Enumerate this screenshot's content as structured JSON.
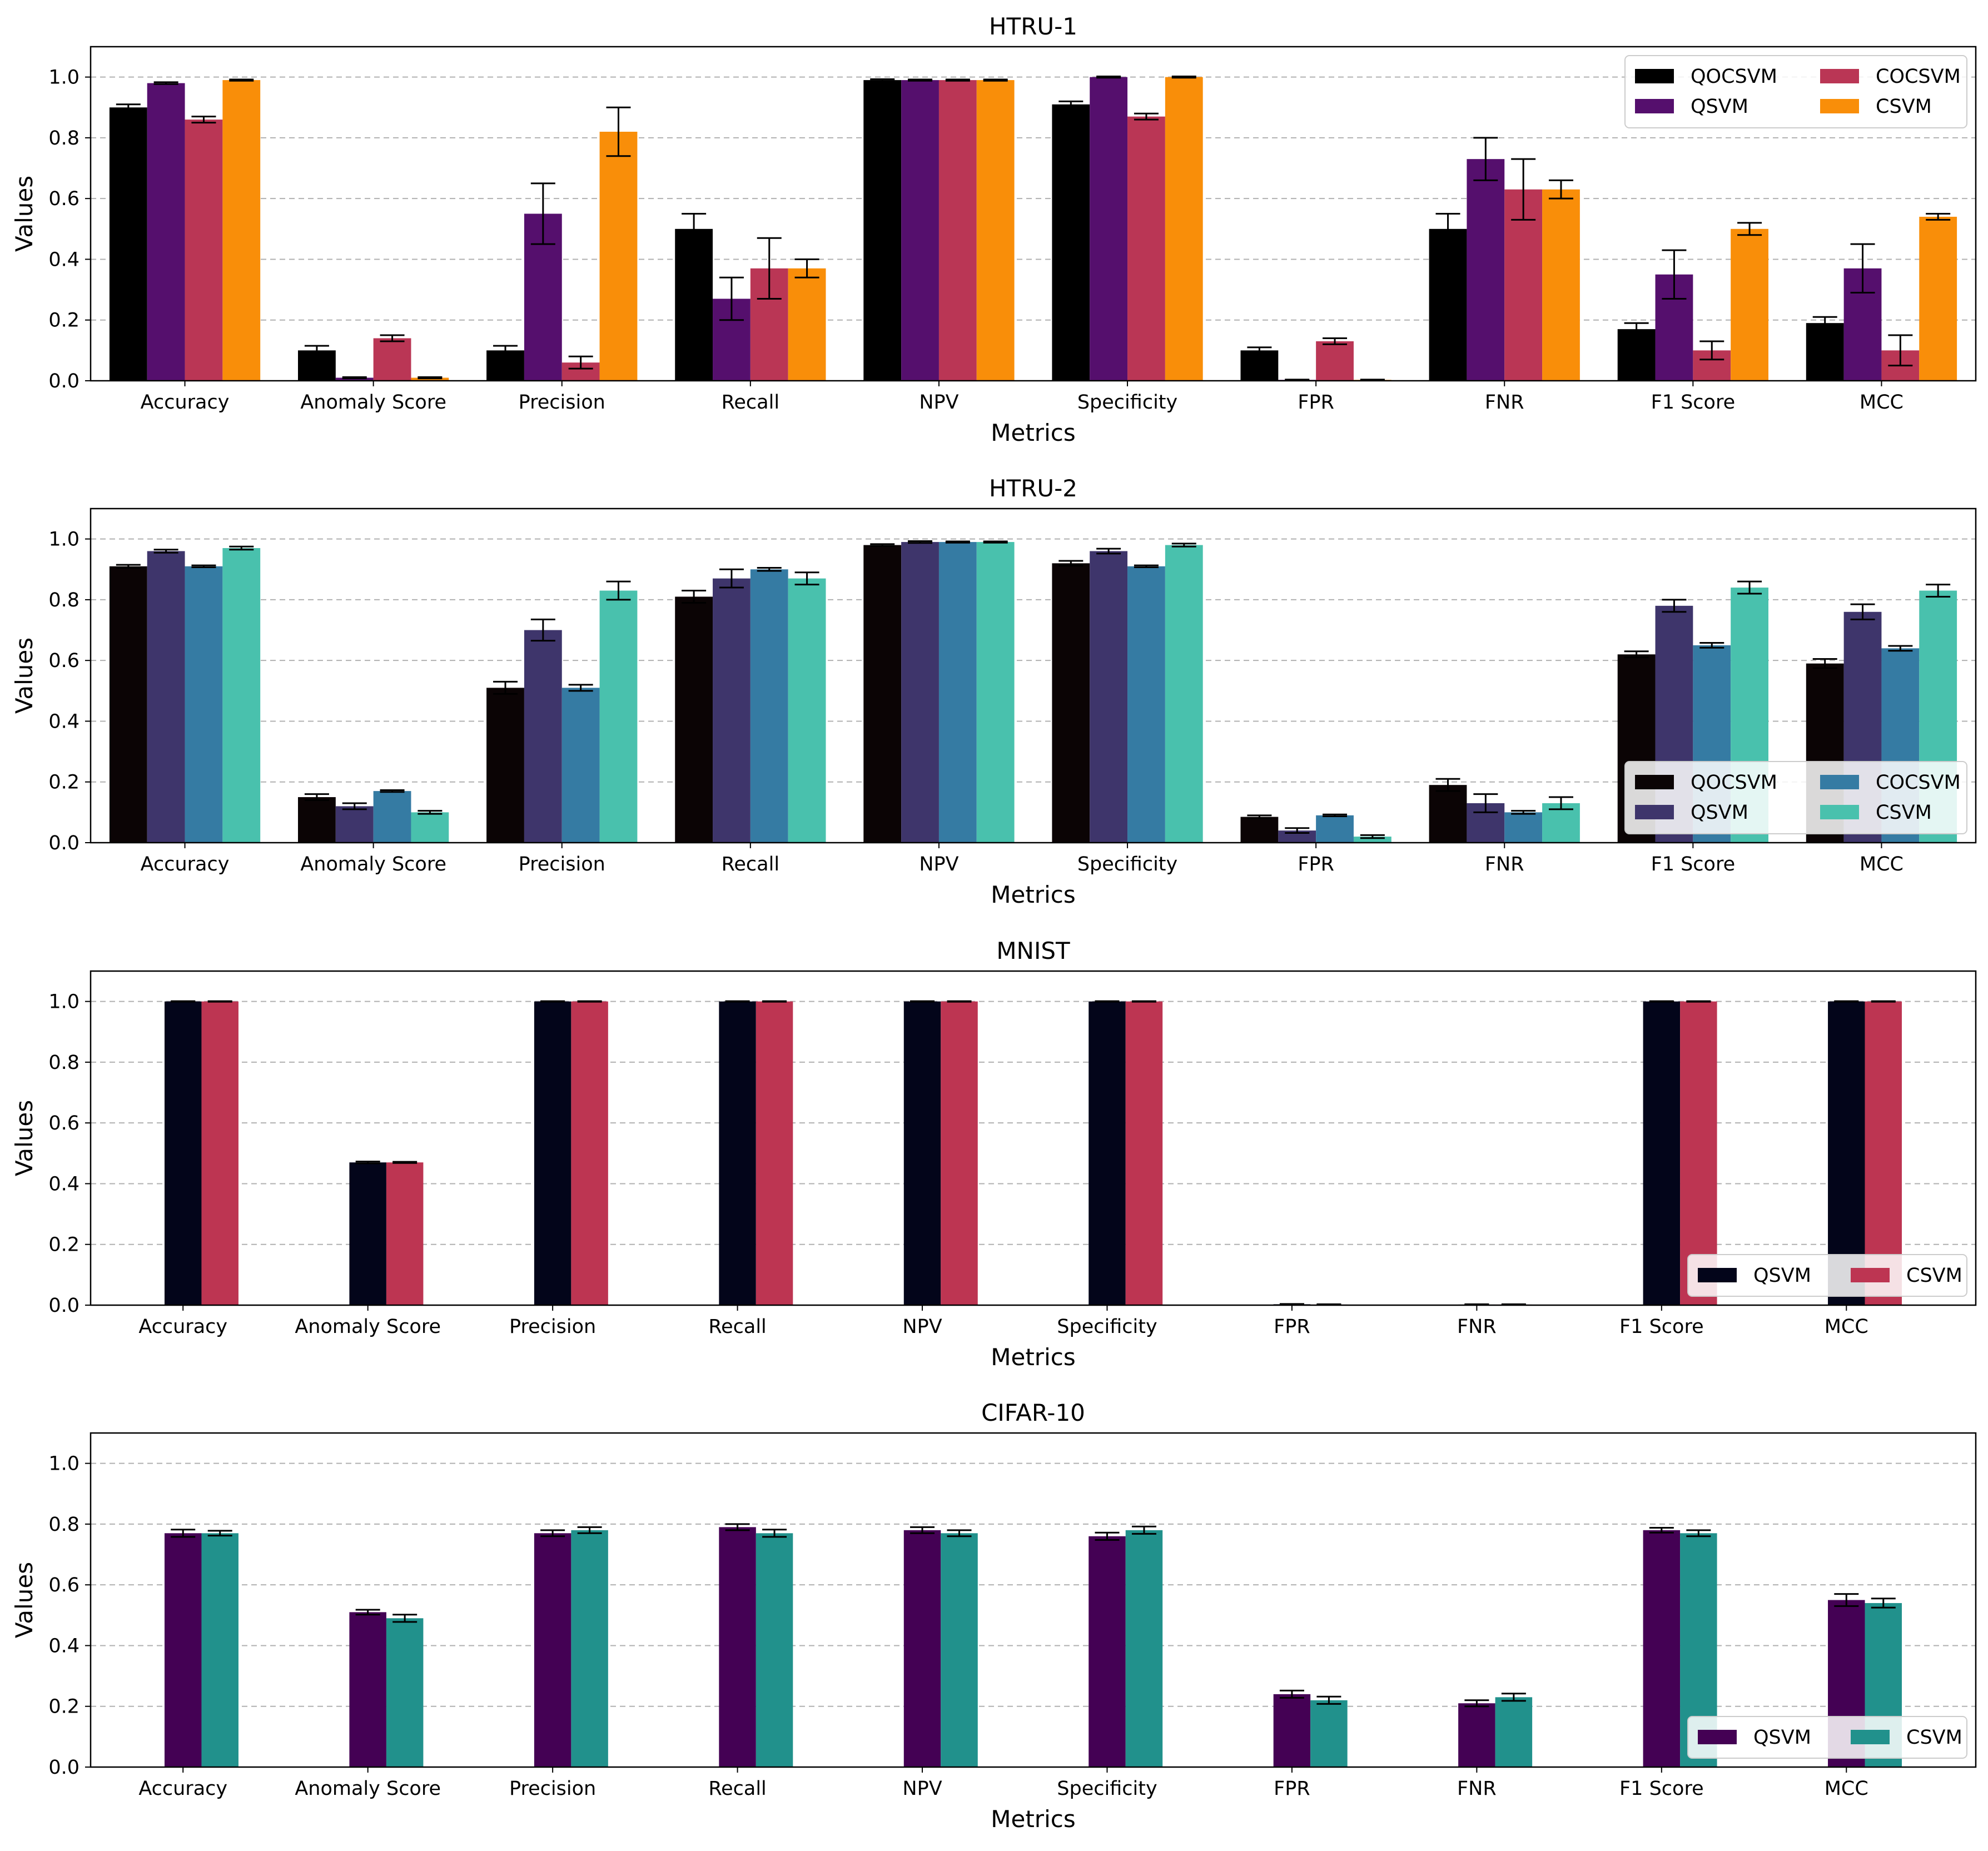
{
  "chart_data": [
    {
      "type": "bar",
      "title": "HTRU-1",
      "xlabel": "Metrics",
      "ylabel": "Values",
      "ylim": [
        0,
        1.1
      ],
      "yticks": [
        "0.0",
        "0.2",
        "0.4",
        "0.6",
        "0.8",
        "1.0"
      ],
      "grid": "y-dashed",
      "legend": "top-right, 2 columns",
      "categories": [
        "Accuracy",
        "Anomaly Score",
        "Precision",
        "Recall",
        "NPV",
        "Specificity",
        "FPR",
        "FNR",
        "F1 Score",
        "MCC"
      ],
      "series": [
        {
          "name": "QOCSVM",
          "color": "#000000",
          "values": [
            0.9,
            0.1,
            0.1,
            0.5,
            0.99,
            0.91,
            0.1,
            0.5,
            0.17,
            0.19
          ],
          "errors": [
            0.01,
            0.015,
            0.015,
            0.05,
            0.003,
            0.01,
            0.01,
            0.05,
            0.02,
            0.02
          ]
        },
        {
          "name": "QSVM",
          "color": "#550f6d",
          "values": [
            0.98,
            0.01,
            0.55,
            0.27,
            0.99,
            1.0,
            0.003,
            0.73,
            0.35,
            0.37
          ],
          "errors": [
            0.003,
            0.002,
            0.1,
            0.07,
            0.002,
            0.002,
            0.001,
            0.07,
            0.08,
            0.08
          ]
        },
        {
          "name": "COCSVM",
          "color": "#ba3655",
          "values": [
            0.86,
            0.14,
            0.06,
            0.37,
            0.99,
            0.87,
            0.13,
            0.63,
            0.1,
            0.1
          ],
          "errors": [
            0.01,
            0.01,
            0.02,
            0.1,
            0.002,
            0.01,
            0.01,
            0.1,
            0.03,
            0.05
          ]
        },
        {
          "name": "CSVM",
          "color": "#f98e09",
          "values": [
            0.99,
            0.01,
            0.82,
            0.37,
            0.99,
            1.0,
            0.003,
            0.63,
            0.5,
            0.54
          ],
          "errors": [
            0.002,
            0.002,
            0.08,
            0.03,
            0.002,
            0.002,
            0.001,
            0.03,
            0.02,
            0.01
          ]
        }
      ]
    },
    {
      "type": "bar",
      "title": "HTRU-2",
      "xlabel": "Metrics",
      "ylabel": "Values",
      "ylim": [
        0,
        1.1
      ],
      "yticks": [
        "0.0",
        "0.2",
        "0.4",
        "0.6",
        "0.8",
        "1.0"
      ],
      "grid": "y-dashed",
      "legend": "lower-right, 2 columns",
      "categories": [
        "Accuracy",
        "Anomaly Score",
        "Precision",
        "Recall",
        "NPV",
        "Specificity",
        "FPR",
        "FNR",
        "F1 Score",
        "MCC"
      ],
      "series": [
        {
          "name": "QOCSVM",
          "color": "#0b0405",
          "values": [
            0.91,
            0.15,
            0.51,
            0.81,
            0.98,
            0.92,
            0.085,
            0.19,
            0.62,
            0.59
          ],
          "errors": [
            0.005,
            0.01,
            0.02,
            0.02,
            0.003,
            0.008,
            0.005,
            0.02,
            0.01,
            0.015
          ]
        },
        {
          "name": "QSVM",
          "color": "#3e356b",
          "values": [
            0.96,
            0.12,
            0.7,
            0.87,
            0.99,
            0.96,
            0.04,
            0.13,
            0.78,
            0.76
          ],
          "errors": [
            0.005,
            0.01,
            0.035,
            0.03,
            0.003,
            0.008,
            0.008,
            0.03,
            0.02,
            0.025
          ]
        },
        {
          "name": "COCSVM",
          "color": "#357ba3",
          "values": [
            0.91,
            0.17,
            0.51,
            0.9,
            0.99,
            0.91,
            0.09,
            0.1,
            0.65,
            0.64
          ],
          "errors": [
            0.003,
            0.003,
            0.01,
            0.005,
            0.002,
            0.003,
            0.003,
            0.005,
            0.008,
            0.008
          ]
        },
        {
          "name": "CSVM",
          "color": "#49c1ad",
          "values": [
            0.97,
            0.1,
            0.83,
            0.87,
            0.99,
            0.98,
            0.02,
            0.13,
            0.84,
            0.83
          ],
          "errors": [
            0.005,
            0.005,
            0.03,
            0.02,
            0.002,
            0.005,
            0.005,
            0.02,
            0.02,
            0.02
          ]
        }
      ]
    },
    {
      "type": "bar",
      "title": "MNIST",
      "xlabel": "Metrics",
      "ylabel": "Values",
      "ylim": [
        0,
        1.1
      ],
      "yticks": [
        "0.0",
        "0.2",
        "0.4",
        "0.6",
        "0.8",
        "1.0"
      ],
      "grid": "y-dashed",
      "legend": "lower-right, 2 columns",
      "categories": [
        "Accuracy",
        "Anomaly Score",
        "Precision",
        "Recall",
        "NPV",
        "Specificity",
        "FPR",
        "FNR",
        "F1 Score",
        "MCC"
      ],
      "series": [
        {
          "name": "QSVM",
          "color": "#03051a",
          "values": [
            1.0,
            0.47,
            1.0,
            1.0,
            1.0,
            1.0,
            0.003,
            0.002,
            1.0,
            1.0
          ],
          "errors": [
            0.001,
            0.003,
            0.001,
            0.001,
            0.001,
            0.001,
            0.001,
            0.001,
            0.001,
            0.001
          ]
        },
        {
          "name": "CSVM",
          "color": "#bd3552",
          "values": [
            1.0,
            0.47,
            1.0,
            1.0,
            1.0,
            1.0,
            0.002,
            0.002,
            1.0,
            1.0
          ],
          "errors": [
            0.001,
            0.002,
            0.001,
            0.001,
            0.001,
            0.001,
            0.001,
            0.001,
            0.001,
            0.001
          ]
        }
      ]
    },
    {
      "type": "bar",
      "title": "CIFAR-10",
      "xlabel": "Metrics",
      "ylabel": "Values",
      "ylim": [
        0,
        1.1
      ],
      "yticks": [
        "0.0",
        "0.2",
        "0.4",
        "0.6",
        "0.8",
        "1.0"
      ],
      "grid": "y-dashed",
      "legend": "lower-right, 2 columns",
      "categories": [
        "Accuracy",
        "Anomaly Score",
        "Precision",
        "Recall",
        "NPV",
        "Specificity",
        "FPR",
        "FNR",
        "F1 Score",
        "MCC"
      ],
      "series": [
        {
          "name": "QSVM",
          "color": "#440154",
          "values": [
            0.77,
            0.51,
            0.77,
            0.79,
            0.78,
            0.76,
            0.24,
            0.21,
            0.78,
            0.55
          ],
          "errors": [
            0.012,
            0.008,
            0.01,
            0.01,
            0.01,
            0.012,
            0.012,
            0.01,
            0.008,
            0.02
          ]
        },
        {
          "name": "CSVM",
          "color": "#21918c",
          "values": [
            0.77,
            0.49,
            0.78,
            0.77,
            0.77,
            0.78,
            0.22,
            0.23,
            0.77,
            0.54
          ],
          "errors": [
            0.008,
            0.012,
            0.01,
            0.012,
            0.01,
            0.012,
            0.012,
            0.012,
            0.01,
            0.015
          ]
        }
      ]
    }
  ]
}
